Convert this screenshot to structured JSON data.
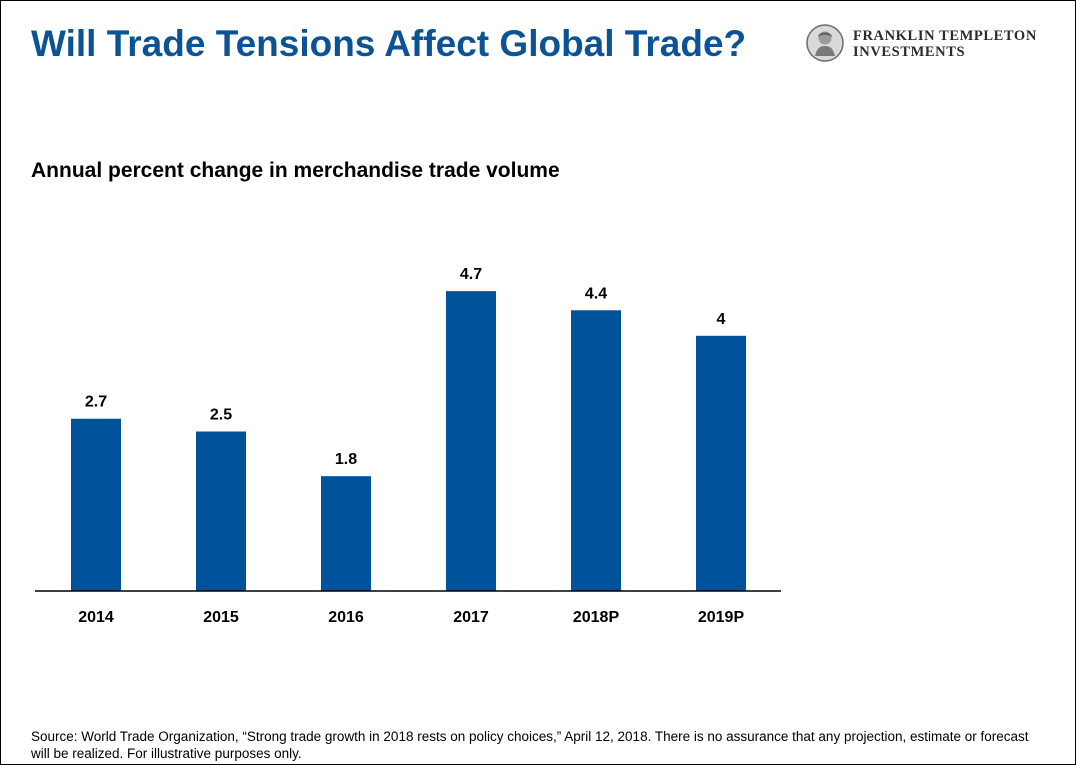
{
  "header": {
    "title": "Will Trade Tensions Affect Global Trade?",
    "logo_line1": "FRANKLIN TEMPLETON",
    "logo_line2": "INVESTMENTS"
  },
  "colors": {
    "title": "#0b5394",
    "bar": "#00539b",
    "axis": "#000000"
  },
  "chart_data": {
    "type": "bar",
    "title": "Annual percent change in merchandise trade volume",
    "categories": [
      "2014",
      "2015",
      "2016",
      "2017",
      "2018P",
      "2019P"
    ],
    "values": [
      2.7,
      2.5,
      1.8,
      4.7,
      4.4,
      4
    ],
    "value_labels": [
      "2.7",
      "2.5",
      "1.8",
      "4.7",
      "4.4",
      "4"
    ],
    "xlabel": "",
    "ylabel": "",
    "ylim": [
      0,
      5.5
    ],
    "grid": false,
    "legend": "none"
  },
  "footer": {
    "source": "Source: World Trade Organization, “Strong trade growth in 2018 rests on policy choices,” April 12, 2018. There is no assurance that any projection, estimate or forecast will be realized. For illustrative purposes only."
  }
}
